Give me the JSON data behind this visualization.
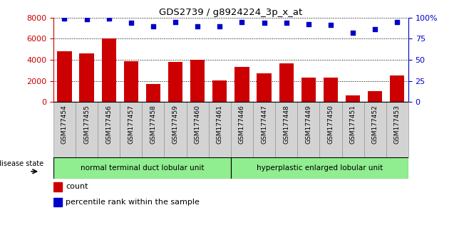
{
  "title": "GDS2739 / g8924224_3p_x_at",
  "categories": [
    "GSM177454",
    "GSM177455",
    "GSM177456",
    "GSM177457",
    "GSM177458",
    "GSM177459",
    "GSM177460",
    "GSM177461",
    "GSM177446",
    "GSM177447",
    "GSM177448",
    "GSM177449",
    "GSM177450",
    "GSM177451",
    "GSM177452",
    "GSM177453"
  ],
  "counts": [
    4800,
    4600,
    6050,
    3850,
    1700,
    3800,
    4020,
    2050,
    3300,
    2750,
    3700,
    2350,
    2350,
    650,
    1050,
    2500
  ],
  "percentiles": [
    99,
    98,
    99,
    94,
    90,
    95,
    90,
    90,
    95,
    94,
    94,
    92,
    91,
    82,
    86,
    95
  ],
  "bar_color": "#cc0000",
  "dot_color": "#0000cc",
  "ylim_left": [
    0,
    8000
  ],
  "ylim_right": [
    0,
    100
  ],
  "yticks_left": [
    0,
    2000,
    4000,
    6000,
    8000
  ],
  "yticks_right": [
    0,
    25,
    50,
    75,
    100
  ],
  "group1_label": "normal terminal duct lobular unit",
  "group2_label": "hyperplastic enlarged lobular unit",
  "group1_count": 8,
  "group2_count": 8,
  "disease_state_label": "disease state",
  "legend_count_label": "count",
  "legend_pct_label": "percentile rank within the sample",
  "group1_color": "#90ee90",
  "group2_color": "#90ee90",
  "tick_bg_color": "#d3d3d3",
  "left_axis_color": "#cc0000",
  "right_axis_color": "#0000cc"
}
